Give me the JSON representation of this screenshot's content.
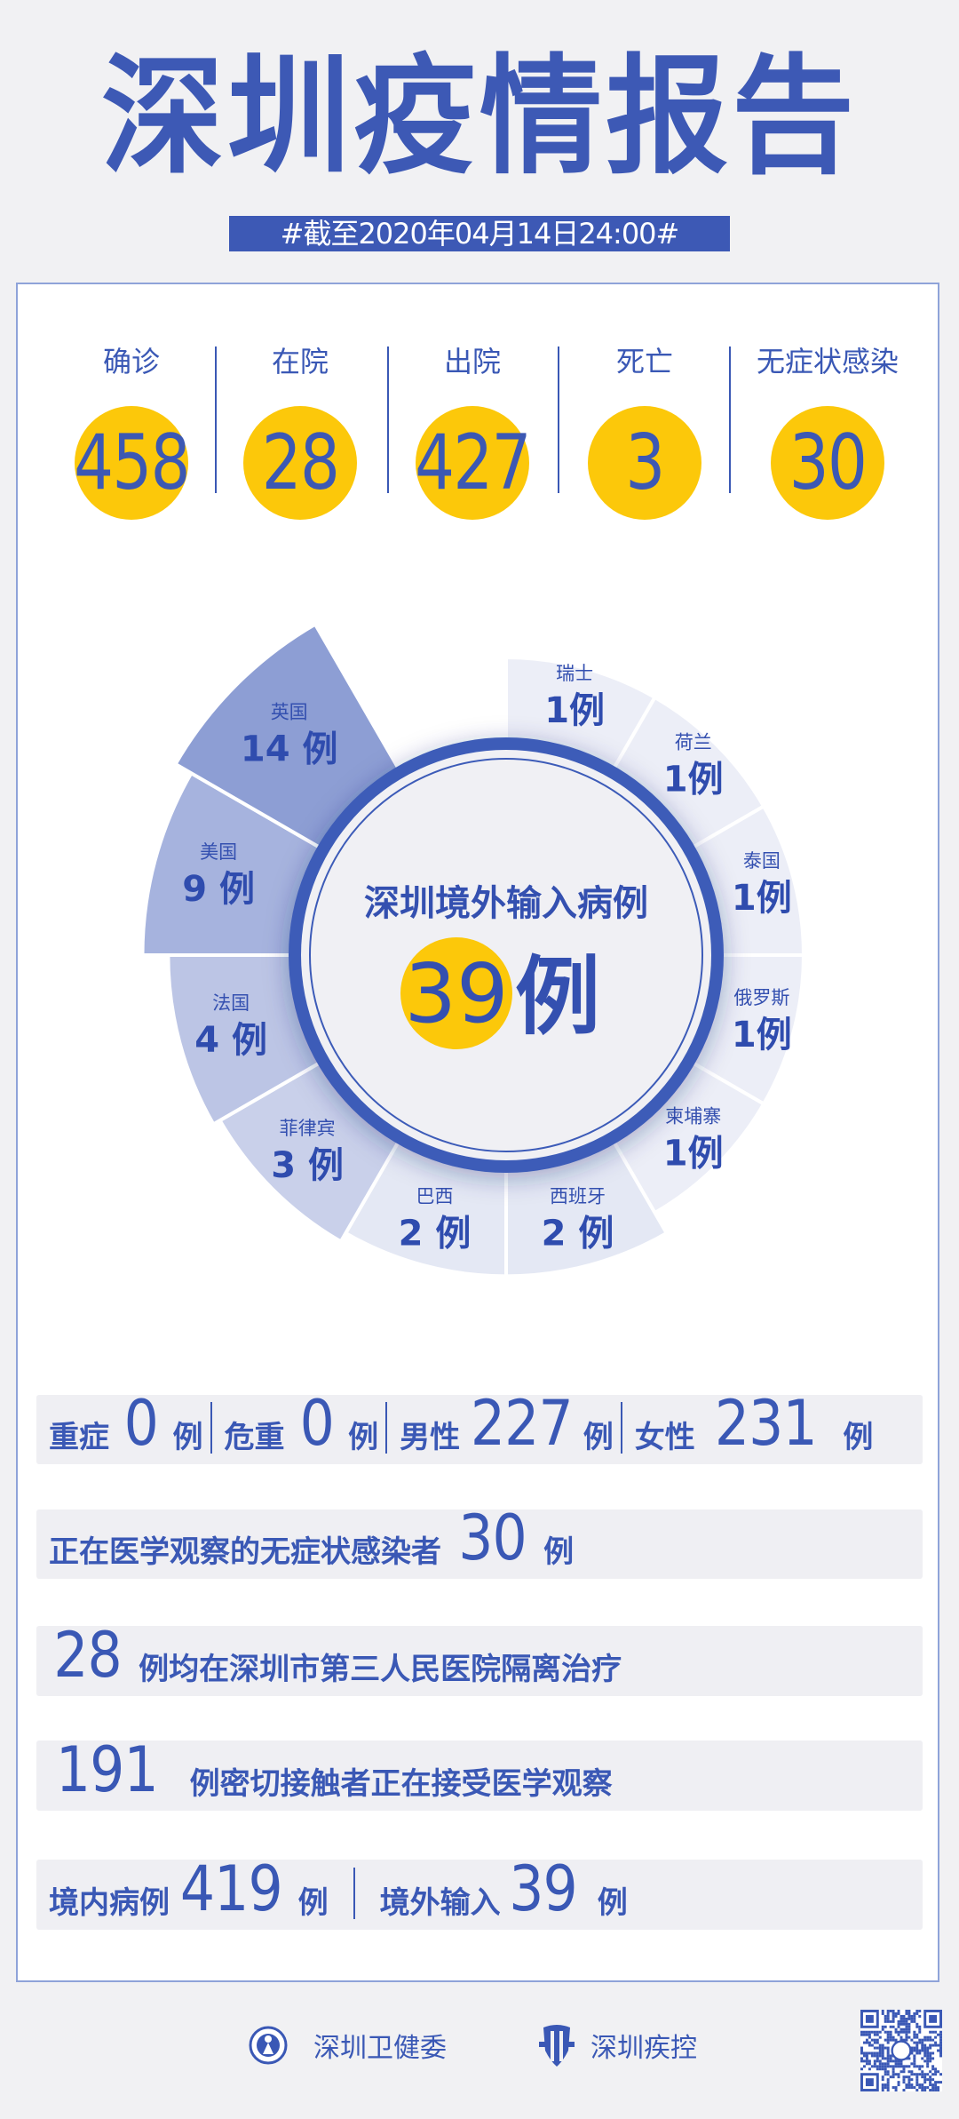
{
  "header": {
    "title": "深圳疫情报告",
    "date_line": "#截至2020年04月14日24:00#"
  },
  "summary": [
    {
      "label": "确诊",
      "value": "458"
    },
    {
      "label": "在院",
      "value": "28"
    },
    {
      "label": "出院",
      "value": "427"
    },
    {
      "label": "死亡",
      "value": "3"
    },
    {
      "label": "无症状感染",
      "value": "30"
    }
  ],
  "chart_data": {
    "type": "rose",
    "title": "深圳境外输入病例",
    "total": "39",
    "total_unit": "例",
    "unit": "例",
    "categories": [
      "瑞士",
      "荷兰",
      "泰国",
      "俄罗斯",
      "柬埔寨",
      "西班牙",
      "巴西",
      "菲律宾",
      "法国",
      "美国",
      "英国"
    ],
    "values": [
      1,
      1,
      1,
      1,
      1,
      2,
      2,
      3,
      4,
      9,
      14
    ],
    "colors": [
      "#eceef7",
      "#eceef7",
      "#eceef7",
      "#eceef7",
      "#eceef7",
      "#e4e8f4",
      "#e4e8f4",
      "#c9d0ea",
      "#bcc5e5",
      "#a6b3de",
      "#8d9ed4"
    ],
    "ring_color": "#3c5bb8",
    "highlight_color": "#fcc80a"
  },
  "details": {
    "row1": {
      "severe_label": "重症",
      "severe_value": "0",
      "severe_unit": "例",
      "critical_label": "危重",
      "critical_value": "0",
      "critical_unit": "例",
      "male_label": "男性",
      "male_value": "227",
      "male_unit": "例",
      "female_label": "女性",
      "female_value": "231",
      "female_unit": "例"
    },
    "row2": {
      "text": "正在医学观察的无症状感染者",
      "value": "30",
      "unit": "例"
    },
    "row3": {
      "value": "28",
      "text": "例均在深圳市第三人民医院隔离治疗"
    },
    "row4": {
      "value": "191",
      "text": "例密切接触者正在接受医学观察"
    },
    "row5": {
      "local_label": "境内病例",
      "local_value": "419",
      "local_unit": "例",
      "imported_label": "境外输入",
      "imported_value": "39",
      "imported_unit": "例"
    }
  },
  "footer": {
    "org1": "深圳卫健委",
    "org2": "深圳疾控",
    "org1_icon": "health-commission-emblem-icon",
    "org2_icon": "cdc-shield-icon",
    "qr_icon": "qr-code-icon"
  },
  "colors": {
    "brand_blue": "#3d59b5",
    "accent_yellow": "#fcc80a",
    "background": "#f1f1f3"
  }
}
